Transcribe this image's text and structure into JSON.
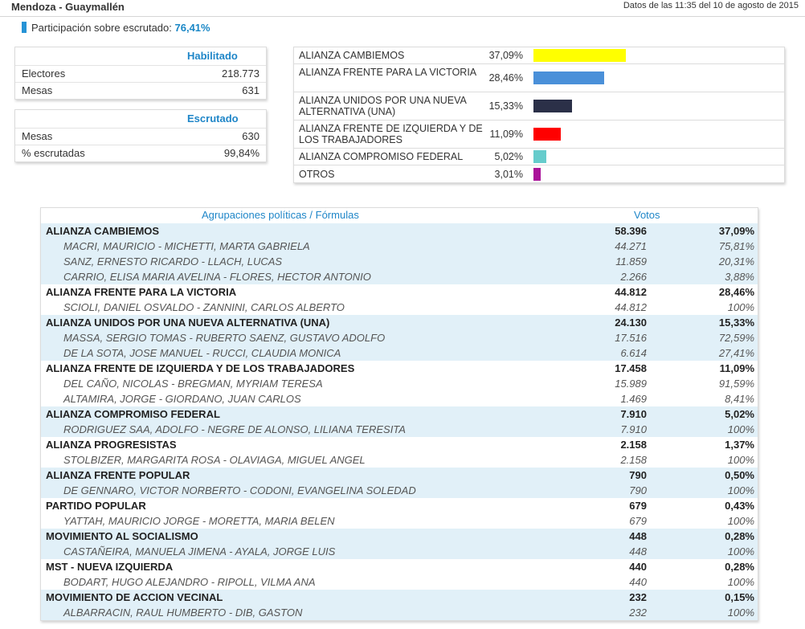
{
  "header": {
    "title": "Mendoza - Guaymallén",
    "date": "Datos de las 11:35 del 10 de agosto de 2015"
  },
  "participation": {
    "label": "Participación sobre escrutado:",
    "value": "76,41%"
  },
  "habilitado": {
    "title": "Habilitado",
    "rows": [
      {
        "label": "Electores",
        "value": "218.773"
      },
      {
        "label": "Mesas",
        "value": "631"
      }
    ]
  },
  "escrutado": {
    "title": "Escrutado",
    "rows": [
      {
        "label": "Mesas",
        "value": "630"
      },
      {
        "label": "% escrutadas",
        "value": "99,84%"
      }
    ]
  },
  "summary": [
    {
      "name": "ALIANZA CAMBIEMOS",
      "pct": "37,09%",
      "share": 37.09,
      "color": "#ffff00"
    },
    {
      "name": "ALIANZA FRENTE PARA LA VICTORIA",
      "pct": "28,46%",
      "share": 28.46,
      "color": "#4a90d9"
    },
    {
      "name": "ALIANZA UNIDOS POR UNA NUEVA ALTERNATIVA (UNA)",
      "pct": "15,33%",
      "share": 15.33,
      "color": "#2b3048"
    },
    {
      "name": "ALIANZA FRENTE DE IZQUIERDA Y DE LOS TRABAJADORES",
      "pct": "11,09%",
      "share": 11.09,
      "color": "#ff0000"
    },
    {
      "name": "ALIANZA COMPROMISO FEDERAL",
      "pct": "5,02%",
      "share": 5.02,
      "color": "#66cccc"
    },
    {
      "name": "OTROS",
      "pct": "3,01%",
      "share": 3.01,
      "color": "#aa1199"
    }
  ],
  "results": {
    "col_name": "Agrupaciones políticas / Fórmulas",
    "col_votes": "Votos",
    "parties": [
      {
        "name": "ALIANZA CAMBIEMOS",
        "votes": "58.396",
        "pct": "37,09%",
        "formulas": [
          {
            "name": "MACRI, MAURICIO - MICHETTI, MARTA GABRIELA",
            "votes": "44.271",
            "pct": "75,81%"
          },
          {
            "name": "SANZ, ERNESTO RICARDO - LLACH, LUCAS",
            "votes": "11.859",
            "pct": "20,31%"
          },
          {
            "name": "CARRIO, ELISA MARIA AVELINA - FLORES, HECTOR ANTONIO",
            "votes": "2.266",
            "pct": "3,88%"
          }
        ]
      },
      {
        "name": "ALIANZA FRENTE PARA LA VICTORIA",
        "votes": "44.812",
        "pct": "28,46%",
        "formulas": [
          {
            "name": "SCIOLI, DANIEL OSVALDO - ZANNINI, CARLOS ALBERTO",
            "votes": "44.812",
            "pct": "100%"
          }
        ]
      },
      {
        "name": "ALIANZA UNIDOS POR UNA NUEVA ALTERNATIVA (UNA)",
        "votes": "24.130",
        "pct": "15,33%",
        "formulas": [
          {
            "name": "MASSA, SERGIO TOMAS - RUBERTO SAENZ, GUSTAVO ADOLFO",
            "votes": "17.516",
            "pct": "72,59%"
          },
          {
            "name": "DE LA SOTA, JOSE MANUEL - RUCCI, CLAUDIA MONICA",
            "votes": "6.614",
            "pct": "27,41%"
          }
        ]
      },
      {
        "name": "ALIANZA FRENTE DE IZQUIERDA Y DE LOS TRABAJADORES",
        "votes": "17.458",
        "pct": "11,09%",
        "formulas": [
          {
            "name": "DEL CAÑO, NICOLAS - BREGMAN, MYRIAM TERESA",
            "votes": "15.989",
            "pct": "91,59%"
          },
          {
            "name": "ALTAMIRA, JORGE - GIORDANO, JUAN CARLOS",
            "votes": "1.469",
            "pct": "8,41%"
          }
        ]
      },
      {
        "name": "ALIANZA COMPROMISO FEDERAL",
        "votes": "7.910",
        "pct": "5,02%",
        "formulas": [
          {
            "name": "RODRIGUEZ SAA, ADOLFO - NEGRE DE ALONSO, LILIANA TERESITA",
            "votes": "7.910",
            "pct": "100%"
          }
        ]
      },
      {
        "name": "ALIANZA PROGRESISTAS",
        "votes": "2.158",
        "pct": "1,37%",
        "formulas": [
          {
            "name": "STOLBIZER, MARGARITA ROSA - OLAVIAGA, MIGUEL ANGEL",
            "votes": "2.158",
            "pct": "100%"
          }
        ]
      },
      {
        "name": "ALIANZA FRENTE POPULAR",
        "votes": "790",
        "pct": "0,50%",
        "formulas": [
          {
            "name": "DE GENNARO, VICTOR NORBERTO - CODONI, EVANGELINA SOLEDAD",
            "votes": "790",
            "pct": "100%"
          }
        ]
      },
      {
        "name": "PARTIDO POPULAR",
        "votes": "679",
        "pct": "0,43%",
        "formulas": [
          {
            "name": "YATTAH, MAURICIO JORGE - MORETTA, MARIA BELEN",
            "votes": "679",
            "pct": "100%"
          }
        ]
      },
      {
        "name": "MOVIMIENTO AL SOCIALISMO",
        "votes": "448",
        "pct": "0,28%",
        "formulas": [
          {
            "name": "CASTAÑEIRA, MANUELA JIMENA - AYALA, JORGE LUIS",
            "votes": "448",
            "pct": "100%"
          }
        ]
      },
      {
        "name": "MST - NUEVA IZQUIERDA",
        "votes": "440",
        "pct": "0,28%",
        "formulas": [
          {
            "name": "BODART, HUGO ALEJANDRO - RIPOLL, VILMA ANA",
            "votes": "440",
            "pct": "100%"
          }
        ]
      },
      {
        "name": "MOVIMIENTO DE ACCION VECINAL",
        "votes": "232",
        "pct": "0,15%",
        "formulas": [
          {
            "name": "ALBARRACIN, RAUL HUMBERTO - DIB, GASTON",
            "votes": "232",
            "pct": "100%"
          }
        ]
      }
    ]
  }
}
